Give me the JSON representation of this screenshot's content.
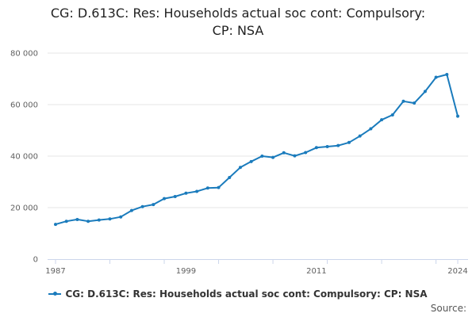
{
  "chart_data": {
    "type": "line",
    "title_line1": "CG: D.613C: Res: Households actual soc cont: Compulsory:",
    "title_line2": "CP: NSA",
    "xlabel": "",
    "ylabel": "",
    "x_tick_labels": [
      "1987",
      "1999",
      "2011",
      "2024"
    ],
    "y_tick_labels": [
      "0",
      "20 000",
      "40 000",
      "60 000",
      "80 000"
    ],
    "xlim": [
      1987,
      2024
    ],
    "ylim": [
      0,
      80000
    ],
    "grid": true,
    "legend_position": "bottom",
    "x": [
      1987,
      1988,
      1989,
      1990,
      1991,
      1992,
      1993,
      1994,
      1995,
      1996,
      1997,
      1998,
      1999,
      2000,
      2001,
      2002,
      2003,
      2004,
      2005,
      2006,
      2007,
      2008,
      2009,
      2010,
      2011,
      2012,
      2013,
      2014,
      2015,
      2016,
      2017,
      2018,
      2019,
      2020,
      2021,
      2022,
      2023,
      2024
    ],
    "series": [
      {
        "name": "CG: D.613C: Res: Households actual soc cont: Compulsory: CP: NSA",
        "color": "#1a7bbc",
        "values": [
          13500,
          14700,
          15400,
          14700,
          15200,
          15600,
          16400,
          18900,
          20400,
          21200,
          23500,
          24300,
          25600,
          26300,
          27600,
          27800,
          31700,
          35600,
          37900,
          40000,
          39500,
          41300,
          40100,
          41400,
          43300,
          43700,
          44100,
          45300,
          47800,
          50600,
          54100,
          56000,
          61300,
          60600,
          65100,
          70600,
          71700,
          55500
        ]
      }
    ]
  },
  "source_label": "Source:"
}
